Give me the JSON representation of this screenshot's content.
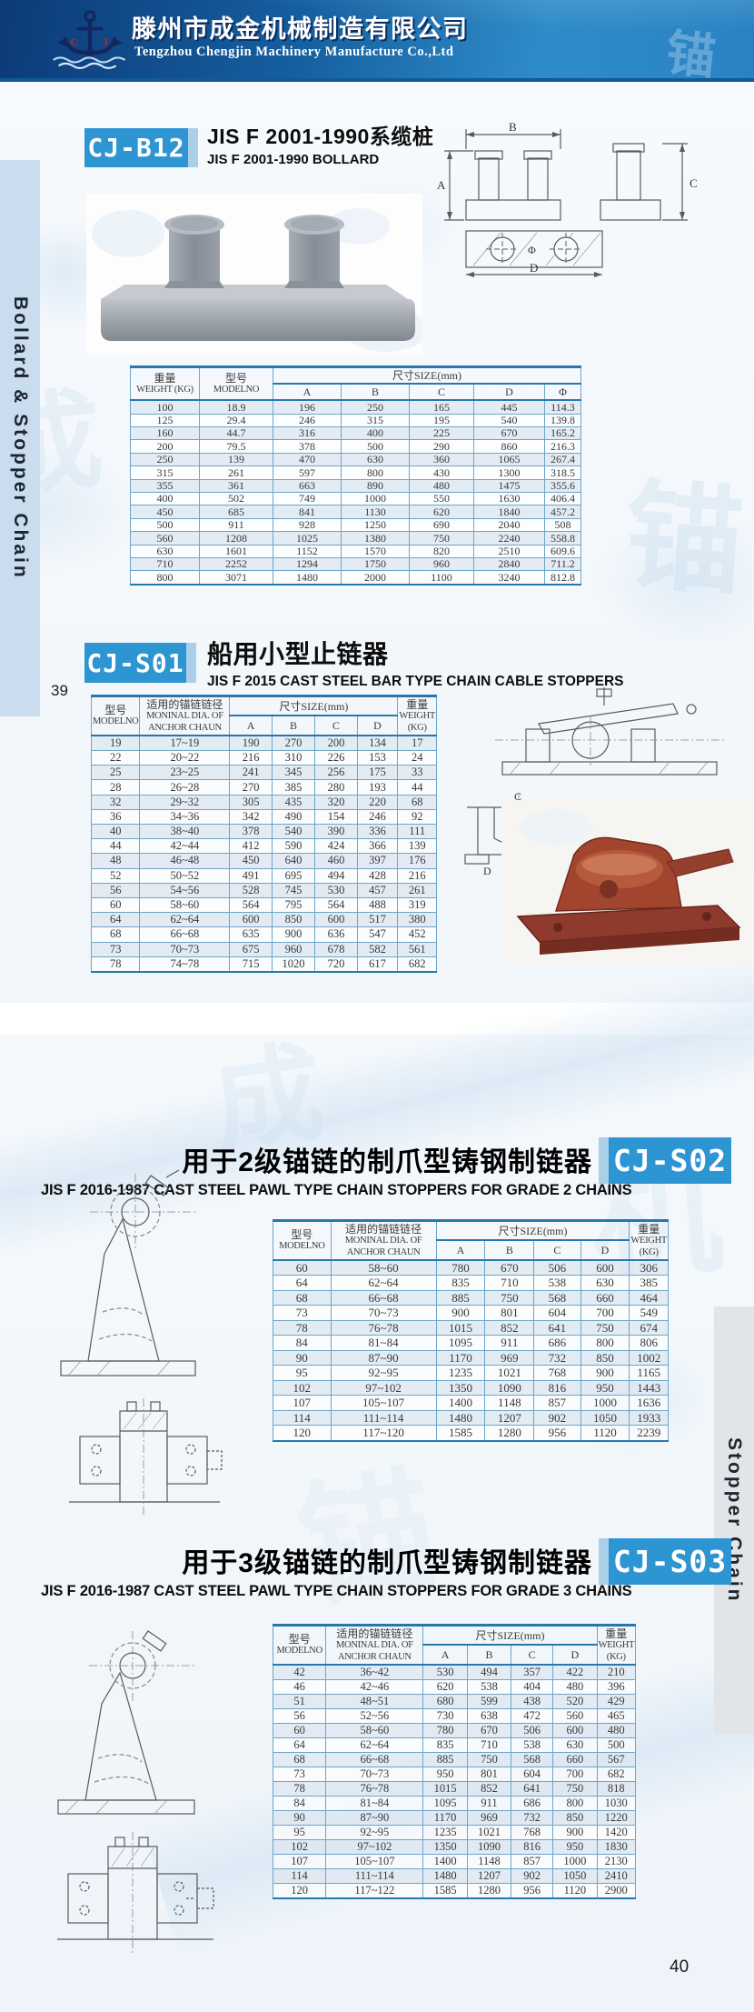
{
  "header": {
    "logo_left": "C",
    "logo_right": "J",
    "company_cn": "滕州市成金机械制造有限公司",
    "company_en": "Tengzhou Chengjin Machinery Manufacture Co.,Ltd",
    "corner_char": "锚"
  },
  "colors": {
    "badge_blue": "#2e95d3",
    "badge_edge": "#a9cfe9",
    "banner_dark": "#0d3a78",
    "banner_light": "#2f8cc9",
    "table_line": "#6ea6c8",
    "table_heavy_line": "#2678ac",
    "row_stripe": "#dee7f1",
    "cast_red": "#a2452f"
  },
  "page39": {
    "sidebar_label": "Bollard & Stopper Chain",
    "page_number": "39",
    "watermarks": [
      "成",
      "锚"
    ],
    "b12": {
      "badge": "CJ-B12",
      "title_cn": "JIS F 2001-1990系缆桩",
      "title_en": "JIS F 2001-1990 BOLLARD",
      "drawing_labels": {
        "a": "A",
        "b": "B",
        "c": "C",
        "d": "D",
        "phi": "Φ"
      },
      "table": {
        "header_rows": [
          [
            {
              "lines": [
                "重量",
                "WEIGHT (KG)"
              ],
              "rowspan": 2
            },
            {
              "lines": [
                "型号",
                "MODELNO"
              ],
              "rowspan": 2
            },
            {
              "lines": [
                "尺寸SIZE(mm)"
              ],
              "colspan": 5
            }
          ],
          [
            {
              "lines": [
                "A"
              ]
            },
            {
              "lines": [
                "B"
              ]
            },
            {
              "lines": [
                "C"
              ]
            },
            {
              "lines": [
                "D"
              ]
            },
            {
              "lines": [
                "Φ"
              ]
            }
          ]
        ],
        "rows": [
          [
            "100",
            "18.9",
            "196",
            "250",
            "165",
            "445",
            "114.3"
          ],
          [
            "125",
            "29.4",
            "246",
            "315",
            "195",
            "540",
            "139.8"
          ],
          [
            "160",
            "44.7",
            "316",
            "400",
            "225",
            "670",
            "165.2"
          ],
          [
            "200",
            "79.5",
            "378",
            "500",
            "290",
            "860",
            "216.3"
          ],
          [
            "250",
            "139",
            "470",
            "630",
            "360",
            "1065",
            "267.4"
          ],
          [
            "315",
            "261",
            "597",
            "800",
            "430",
            "1300",
            "318.5"
          ],
          [
            "355",
            "361",
            "663",
            "890",
            "480",
            "1475",
            "355.6"
          ],
          [
            "400",
            "502",
            "749",
            "1000",
            "550",
            "1630",
            "406.4"
          ],
          [
            "450",
            "685",
            "841",
            "1130",
            "620",
            "1840",
            "457.2"
          ],
          [
            "500",
            "911",
            "928",
            "1250",
            "690",
            "2040",
            "508"
          ],
          [
            "560",
            "1208",
            "1025",
            "1380",
            "750",
            "2240",
            "558.8"
          ],
          [
            "630",
            "1601",
            "1152",
            "1570",
            "820",
            "2510",
            "609.6"
          ],
          [
            "710",
            "2252",
            "1294",
            "1750",
            "960",
            "2840",
            "711.2"
          ],
          [
            "800",
            "3071",
            "1480",
            "2000",
            "1100",
            "3240",
            "812.8"
          ]
        ]
      }
    },
    "s01": {
      "badge": "CJ-S01",
      "title_cn": "船用小型止链器",
      "title_en": "JIS F 2015 CAST STEEL BAR TYPE CHAIN CABLE STOPPERS",
      "drawing_labels": {
        "c": "C",
        "d": "D"
      },
      "table": {
        "header_rows": [
          [
            {
              "lines": [
                "型号",
                "MODELNO"
              ],
              "rowspan": 2
            },
            {
              "lines": [
                "适用的锚链链径",
                "MONINAL DIA. OF",
                "ANCHOR CHAUN"
              ],
              "rowspan": 2
            },
            {
              "lines": [
                "尺寸SIZE(mm)"
              ],
              "colspan": 4
            },
            {
              "lines": [
                "重量",
                "WEIGHT",
                "(KG)"
              ],
              "rowspan": 2
            }
          ],
          [
            {
              "lines": [
                "A"
              ]
            },
            {
              "lines": [
                "B"
              ]
            },
            {
              "lines": [
                "C"
              ]
            },
            {
              "lines": [
                "D"
              ]
            }
          ]
        ],
        "rows": [
          [
            "19",
            "17~19",
            "190",
            "270",
            "200",
            "134",
            "17"
          ],
          [
            "22",
            "20~22",
            "216",
            "310",
            "226",
            "153",
            "24"
          ],
          [
            "25",
            "23~25",
            "241",
            "345",
            "256",
            "175",
            "33"
          ],
          [
            "28",
            "26~28",
            "270",
            "385",
            "280",
            "193",
            "44"
          ],
          [
            "32",
            "29~32",
            "305",
            "435",
            "320",
            "220",
            "68"
          ],
          [
            "36",
            "34~36",
            "342",
            "490",
            "154",
            "246",
            "92"
          ],
          [
            "40",
            "38~40",
            "378",
            "540",
            "390",
            "336",
            "111"
          ],
          [
            "44",
            "42~44",
            "412",
            "590",
            "424",
            "366",
            "139"
          ],
          [
            "48",
            "46~48",
            "450",
            "640",
            "460",
            "397",
            "176"
          ],
          [
            "52",
            "50~52",
            "491",
            "695",
            "494",
            "428",
            "216"
          ],
          [
            "56",
            "54~56",
            "528",
            "745",
            "530",
            "457",
            "261"
          ],
          [
            "60",
            "58~60",
            "564",
            "795",
            "564",
            "488",
            "319"
          ],
          [
            "64",
            "62~64",
            "600",
            "850",
            "600",
            "517",
            "380"
          ],
          [
            "68",
            "66~68",
            "635",
            "900",
            "636",
            "547",
            "452"
          ],
          [
            "73",
            "70~73",
            "675",
            "960",
            "678",
            "582",
            "561"
          ],
          [
            "78",
            "74~78",
            "715",
            "1020",
            "720",
            "617",
            "682"
          ]
        ]
      }
    }
  },
  "page40": {
    "sidebar_label": "Stopper Chain",
    "page_number": "40",
    "watermarks": [
      "成",
      "机",
      "锚"
    ],
    "s02": {
      "badge": "CJ-S02",
      "title_cn": "用于2级锚链的制爪型铸钢制链器",
      "title_en": "JIS F 2016-1987 CAST STEEL PAWL TYPE CHAIN STOPPERS FOR GRADE 2 CHAINS",
      "table": {
        "header_rows": [
          [
            {
              "lines": [
                "型号",
                "MODELNO"
              ],
              "rowspan": 2
            },
            {
              "lines": [
                "适用的锚链链径",
                "MONINAL DIA. OF",
                "ANCHOR CHAUN"
              ],
              "rowspan": 2
            },
            {
              "lines": [
                "尺寸SIZE(mm)"
              ],
              "colspan": 4
            },
            {
              "lines": [
                "重量",
                "WEIGHT",
                "(KG)"
              ],
              "rowspan": 2
            }
          ],
          [
            {
              "lines": [
                "A"
              ]
            },
            {
              "lines": [
                "B"
              ]
            },
            {
              "lines": [
                "C"
              ]
            },
            {
              "lines": [
                "D"
              ]
            }
          ]
        ],
        "rows": [
          [
            "60",
            "58~60",
            "780",
            "670",
            "506",
            "600",
            "306"
          ],
          [
            "64",
            "62~64",
            "835",
            "710",
            "538",
            "630",
            "385"
          ],
          [
            "68",
            "66~68",
            "885",
            "750",
            "568",
            "660",
            "464"
          ],
          [
            "73",
            "70~73",
            "900",
            "801",
            "604",
            "700",
            "549"
          ],
          [
            "78",
            "76~78",
            "1015",
            "852",
            "641",
            "750",
            "674"
          ],
          [
            "84",
            "81~84",
            "1095",
            "911",
            "686",
            "800",
            "806"
          ],
          [
            "90",
            "87~90",
            "1170",
            "969",
            "732",
            "850",
            "1002"
          ],
          [
            "95",
            "92~95",
            "1235",
            "1021",
            "768",
            "900",
            "1165"
          ],
          [
            "102",
            "97~102",
            "1350",
            "1090",
            "816",
            "950",
            "1443"
          ],
          [
            "107",
            "105~107",
            "1400",
            "1148",
            "857",
            "1000",
            "1636"
          ],
          [
            "114",
            "111~114",
            "1480",
            "1207",
            "902",
            "1050",
            "1933"
          ],
          [
            "120",
            "117~120",
            "1585",
            "1280",
            "956",
            "1120",
            "2239"
          ]
        ]
      }
    },
    "s03": {
      "badge": "CJ-S03",
      "title_cn": "用于3级锚链的制爪型铸钢制链器",
      "title_en": "JIS F 2016-1987 CAST STEEL PAWL TYPE CHAIN STOPPERS FOR GRADE 3 CHAINS",
      "table": {
        "header_rows": [
          [
            {
              "lines": [
                "型号",
                "MODELNO"
              ],
              "rowspan": 2
            },
            {
              "lines": [
                "适用的锚链链径",
                "MONINAL DIA. OF",
                "ANCHOR CHAUN"
              ],
              "rowspan": 2
            },
            {
              "lines": [
                "尺寸SIZE(mm)"
              ],
              "colspan": 4
            },
            {
              "lines": [
                "重量",
                "WEIGHT (KG)"
              ],
              "rowspan": 2
            }
          ],
          [
            {
              "lines": [
                "A"
              ]
            },
            {
              "lines": [
                "B"
              ]
            },
            {
              "lines": [
                "C"
              ]
            },
            {
              "lines": [
                "D"
              ]
            }
          ]
        ],
        "rows": [
          [
            "42",
            "36~42",
            "530",
            "494",
            "357",
            "422",
            "210"
          ],
          [
            "46",
            "42~46",
            "620",
            "538",
            "404",
            "480",
            "396"
          ],
          [
            "51",
            "48~51",
            "680",
            "599",
            "438",
            "520",
            "429"
          ],
          [
            "56",
            "52~56",
            "730",
            "638",
            "472",
            "560",
            "465"
          ],
          [
            "60",
            "58~60",
            "780",
            "670",
            "506",
            "600",
            "480"
          ],
          [
            "64",
            "62~64",
            "835",
            "710",
            "538",
            "630",
            "500"
          ],
          [
            "68",
            "66~68",
            "885",
            "750",
            "568",
            "660",
            "567"
          ],
          [
            "73",
            "70~73",
            "950",
            "801",
            "604",
            "700",
            "682"
          ],
          [
            "78",
            "76~78",
            "1015",
            "852",
            "641",
            "750",
            "818"
          ],
          [
            "84",
            "81~84",
            "1095",
            "911",
            "686",
            "800",
            "1030"
          ],
          [
            "90",
            "87~90",
            "1170",
            "969",
            "732",
            "850",
            "1220"
          ],
          [
            "95",
            "92~95",
            "1235",
            "1021",
            "768",
            "900",
            "1420"
          ],
          [
            "102",
            "97~102",
            "1350",
            "1090",
            "816",
            "950",
            "1830"
          ],
          [
            "107",
            "105~107",
            "1400",
            "1148",
            "857",
            "1000",
            "2130"
          ],
          [
            "114",
            "111~114",
            "1480",
            "1207",
            "902",
            "1050",
            "2410"
          ],
          [
            "120",
            "117~122",
            "1585",
            "1280",
            "956",
            "1120",
            "2900"
          ]
        ]
      }
    }
  }
}
